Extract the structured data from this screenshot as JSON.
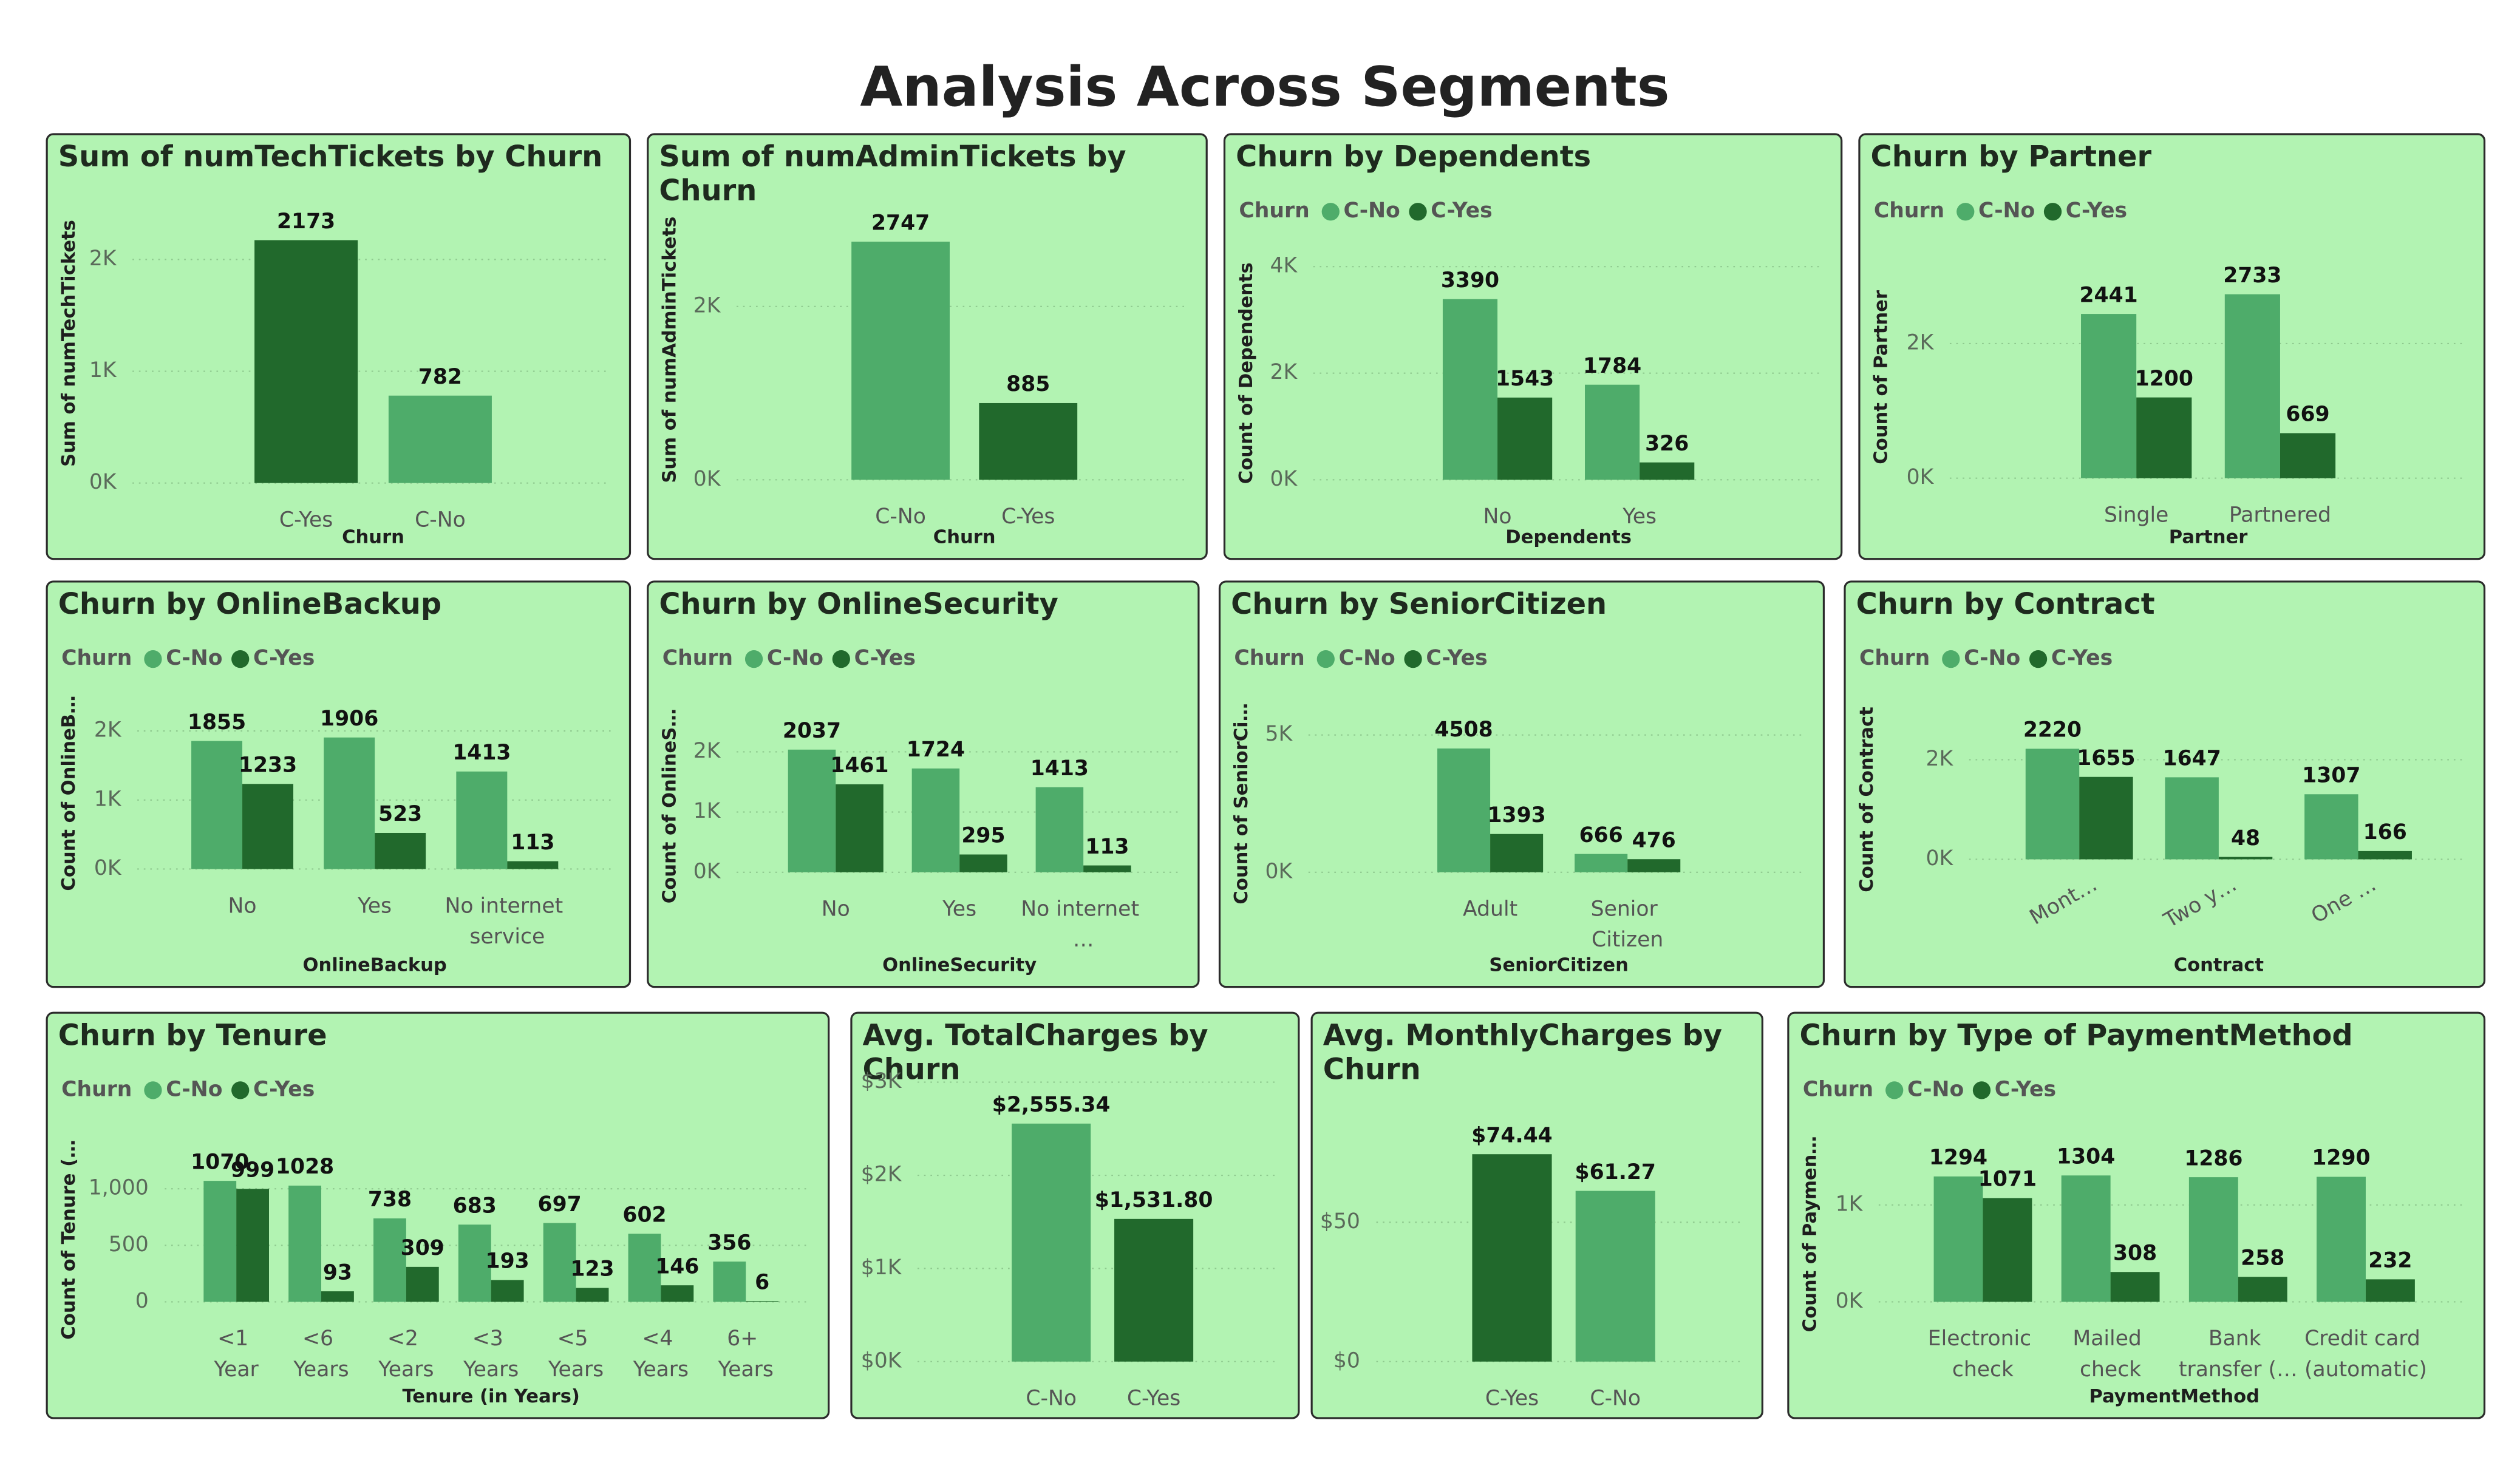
{
  "title": "Analysis Across Segments",
  "chart_data": [
    {
      "type": "bar",
      "title": "Sum of numTechTickets by Churn",
      "x_label": "Churn",
      "y_label": "Sum of numTechTickets",
      "categories": [
        "C-Yes",
        "C-No"
      ],
      "values": [
        2173,
        782
      ],
      "colors": [
        "#21692c",
        "#4eac6a"
      ],
      "ylim": [
        0,
        2500
      ],
      "yticks": [
        {
          "value": 0,
          "label": "0K"
        },
        {
          "value": 1000,
          "label": "1K"
        },
        {
          "value": 2000,
          "label": "2K"
        }
      ],
      "grid": true
    },
    {
      "type": "bar",
      "title": "Sum of numAdminTickets by Churn",
      "x_label": "Churn",
      "y_label": "Sum of numAdminTickets",
      "categories": [
        "C-No",
        "C-Yes"
      ],
      "values": [
        2747,
        885
      ],
      "colors": [
        "#4eac6a",
        "#21692c"
      ],
      "ylim": [
        0,
        3000
      ],
      "yticks": [
        {
          "value": 0,
          "label": "0K"
        },
        {
          "value": 2000,
          "label": "2K"
        }
      ],
      "grid": true
    },
    {
      "type": "bar",
      "title": "Churn by Dependents",
      "x_label": "Dependents",
      "y_label": "Count of Dependents",
      "legend_title": "Churn",
      "categories": [
        "No",
        "Yes"
      ],
      "series": [
        {
          "name": "C-No",
          "color": "#4eac6a",
          "values": [
            3390,
            1784
          ]
        },
        {
          "name": "C-Yes",
          "color": "#21692c",
          "values": [
            1543,
            326
          ]
        }
      ],
      "ylim": [
        0,
        4000
      ],
      "yticks": [
        {
          "value": 0,
          "label": "0K"
        },
        {
          "value": 2000,
          "label": "2K"
        },
        {
          "value": 4000,
          "label": "4K"
        }
      ],
      "grid": true
    },
    {
      "type": "bar",
      "title": "Churn by Partner",
      "x_label": "Partner",
      "y_label": "Count of Partner",
      "legend_title": "Churn",
      "categories": [
        "Single",
        "Partnered"
      ],
      "series": [
        {
          "name": "C-No",
          "color": "#4eac6a",
          "values": [
            2441,
            2733
          ]
        },
        {
          "name": "C-Yes",
          "color": "#21692c",
          "values": [
            1200,
            669
          ]
        }
      ],
      "ylim": [
        0,
        3000
      ],
      "yticks": [
        {
          "value": 0,
          "label": "0K"
        },
        {
          "value": 2000,
          "label": "2K"
        }
      ],
      "grid": true
    },
    {
      "type": "bar",
      "title": "Churn by OnlineBackup",
      "x_label": "OnlineBackup",
      "y_label": "Count of OnlineB…",
      "legend_title": "Churn",
      "categories": [
        "No",
        "Yes",
        "No internet service"
      ],
      "series": [
        {
          "name": "C-No",
          "color": "#4eac6a",
          "values": [
            1855,
            1906,
            1413
          ]
        },
        {
          "name": "C-Yes",
          "color": "#21692c",
          "values": [
            1233,
            523,
            113
          ]
        }
      ],
      "ylim": [
        0,
        2200
      ],
      "yticks": [
        {
          "value": 0,
          "label": "0K"
        },
        {
          "value": 1000,
          "label": "1K"
        },
        {
          "value": 2000,
          "label": "2K"
        }
      ],
      "grid": true
    },
    {
      "type": "bar",
      "title": "Churn by OnlineSecurity",
      "x_label": "OnlineSecurity",
      "y_label": "Count of OnlineS…",
      "legend_title": "Churn",
      "categories": [
        "No",
        "Yes",
        "No internet …"
      ],
      "series": [
        {
          "name": "C-No",
          "color": "#4eac6a",
          "values": [
            2037,
            1724,
            1413
          ]
        },
        {
          "name": "C-Yes",
          "color": "#21692c",
          "values": [
            1461,
            295,
            113
          ]
        }
      ],
      "ylim": [
        0,
        2200
      ],
      "yticks": [
        {
          "value": 0,
          "label": "0K"
        },
        {
          "value": 1000,
          "label": "1K"
        },
        {
          "value": 2000,
          "label": "2K"
        }
      ],
      "grid": true
    },
    {
      "type": "bar",
      "title": "Churn by SeniorCitizen",
      "x_label": "SeniorCitizen",
      "y_label": "Count of SeniorCi…",
      "legend_title": "Churn",
      "categories": [
        "Adult",
        "Senior Citizen"
      ],
      "series": [
        {
          "name": "C-No",
          "color": "#4eac6a",
          "values": [
            4508,
            666
          ]
        },
        {
          "name": "C-Yes",
          "color": "#21692c",
          "values": [
            1393,
            476
          ]
        }
      ],
      "ylim": [
        0,
        5000
      ],
      "yticks": [
        {
          "value": 0,
          "label": "0K"
        },
        {
          "value": 5000,
          "label": "5K"
        }
      ],
      "grid": true
    },
    {
      "type": "bar",
      "title": "Churn by Contract",
      "x_label": "Contract",
      "y_label": "Count of Contract",
      "legend_title": "Churn",
      "categories": [
        "Mont…",
        "Two y…",
        "One …"
      ],
      "series": [
        {
          "name": "C-No",
          "color": "#4eac6a",
          "values": [
            2220,
            1647,
            1307
          ]
        },
        {
          "name": "C-Yes",
          "color": "#21692c",
          "values": [
            1655,
            48,
            166
          ]
        }
      ],
      "ylim": [
        0,
        2400
      ],
      "yticks": [
        {
          "value": 0,
          "label": "0K"
        },
        {
          "value": 2000,
          "label": "2K"
        }
      ],
      "grid": true
    },
    {
      "type": "bar",
      "title": "Churn by Tenure",
      "x_label": "Tenure (in Years)",
      "y_label": "Count of Tenure (…",
      "legend_title": "Churn",
      "categories": [
        "<1 Year",
        "<6 Years",
        "<2 Years",
        "<3 Years",
        "<5 Years",
        "<4 Years",
        "6+ Years"
      ],
      "series": [
        {
          "name": "C-No",
          "color": "#4eac6a",
          "values": [
            1070,
            1028,
            738,
            683,
            697,
            602,
            356
          ]
        },
        {
          "name": "C-Yes",
          "color": "#21692c",
          "values": [
            999,
            93,
            309,
            193,
            123,
            146,
            6
          ]
        }
      ],
      "ylim": [
        0,
        1100
      ],
      "yticks": [
        0,
        500,
        {
          "value": 1000,
          "label": "1,000"
        }
      ],
      "grid": true
    },
    {
      "type": "bar",
      "title": "Avg. TotalCharges by Churn",
      "categories": [
        "C-No",
        "C-Yes"
      ],
      "values": [
        2555.34,
        1531.8
      ],
      "value_labels": [
        "$2,555.34",
        "$1,531.80"
      ],
      "colors": [
        "#4eac6a",
        "#21692c"
      ],
      "ylim": [
        0,
        3000
      ],
      "yticks": [
        {
          "value": 0,
          "label": "$0K"
        },
        {
          "value": 1000,
          "label": "$1K"
        },
        {
          "value": 2000,
          "label": "$2K"
        },
        {
          "value": 3000,
          "label": "$3K"
        }
      ],
      "grid": true
    },
    {
      "type": "bar",
      "title": "Avg. MonthlyCharges by Churn",
      "categories": [
        "C-Yes",
        "C-No"
      ],
      "values": [
        74.44,
        61.27
      ],
      "value_labels": [
        "$74.44",
        "$61.27"
      ],
      "colors": [
        "#21692c",
        "#4eac6a"
      ],
      "ylim": [
        0,
        80
      ],
      "yticks": [
        {
          "value": 0,
          "label": "$0"
        },
        {
          "value": 50,
          "label": "$50"
        }
      ],
      "grid": true
    },
    {
      "type": "bar",
      "title": "Churn by Type of PaymentMethod",
      "x_label": "PaymentMethod",
      "y_label": "Count of Paymen…",
      "legend_title": "Churn",
      "categories": [
        "Electronic check",
        "Mailed check",
        "Bank transfer (…",
        "Credit card (automatic)"
      ],
      "series": [
        {
          "name": "C-No",
          "color": "#4eac6a",
          "values": [
            1294,
            1304,
            1286,
            1290
          ]
        },
        {
          "name": "C-Yes",
          "color": "#21692c",
          "values": [
            1071,
            308,
            258,
            232
          ]
        }
      ],
      "ylim": [
        0,
        1400
      ],
      "yticks": [
        {
          "value": 0,
          "label": "0K"
        },
        {
          "value": 1000,
          "label": "1K"
        }
      ],
      "grid": true
    }
  ]
}
